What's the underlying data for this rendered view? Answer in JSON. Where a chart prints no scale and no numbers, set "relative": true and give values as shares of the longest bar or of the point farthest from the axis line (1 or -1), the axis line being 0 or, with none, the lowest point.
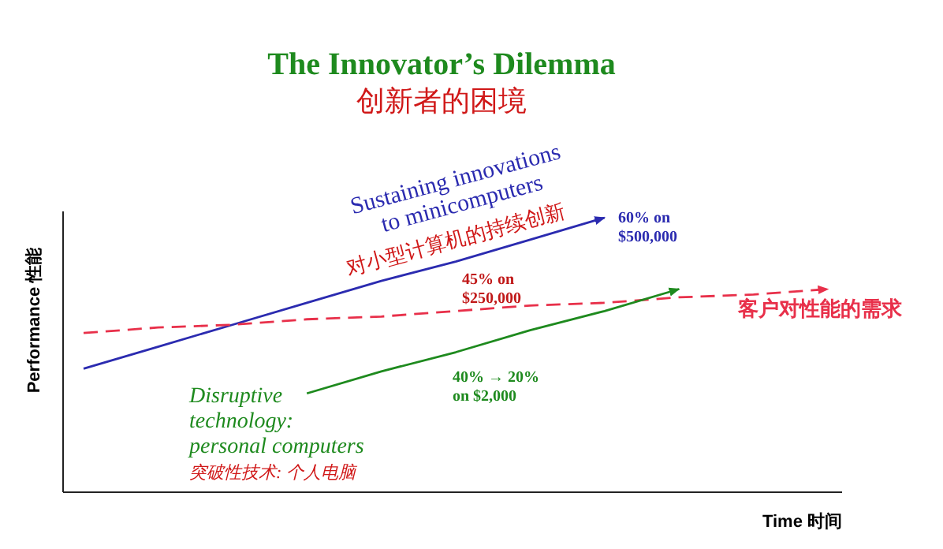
{
  "chart_data": {
    "type": "line",
    "title": "The Innovator’s Dilemma",
    "subtitle": "创新者的困境",
    "xlabel": "Time 时间",
    "ylabel": "Performance 性能",
    "relative": true,
    "legend": false,
    "marker": "none",
    "categories": [
      null,
      null,
      null,
      null,
      null,
      null,
      null,
      null,
      null,
      null,
      null
    ],
    "series": [
      {
        "name": "Sustaining innovations to minicomputers",
        "color": "#2b2bb0",
        "values": [
          0.45,
          0.53,
          0.61,
          0.69,
          0.77,
          0.84,
          0.92,
          1,
          null,
          null,
          null
        ],
        "line_style": "solid"
      },
      {
        "name": "客户对性能的需求",
        "color": "#e8304a",
        "values": [
          0.58,
          0.6,
          0.61,
          0.63,
          0.64,
          0.66,
          0.68,
          0.69,
          0.71,
          0.72,
          0.74
        ],
        "line_style": "dashed"
      },
      {
        "name": "Disruptive technology: personal computers",
        "color": "#1e8a1e",
        "values": [
          null,
          null,
          null,
          0.36,
          0.44,
          0.51,
          0.59,
          0.66,
          0.74,
          null,
          null
        ],
        "line_style": "solid"
      }
    ],
    "annotations": [
      "对小型计算机的持续创新",
      "60% on $500,000",
      "45% on $250,000",
      "40% → 20% on $2,000",
      "突破性技术: 个人电脑"
    ]
  }
}
